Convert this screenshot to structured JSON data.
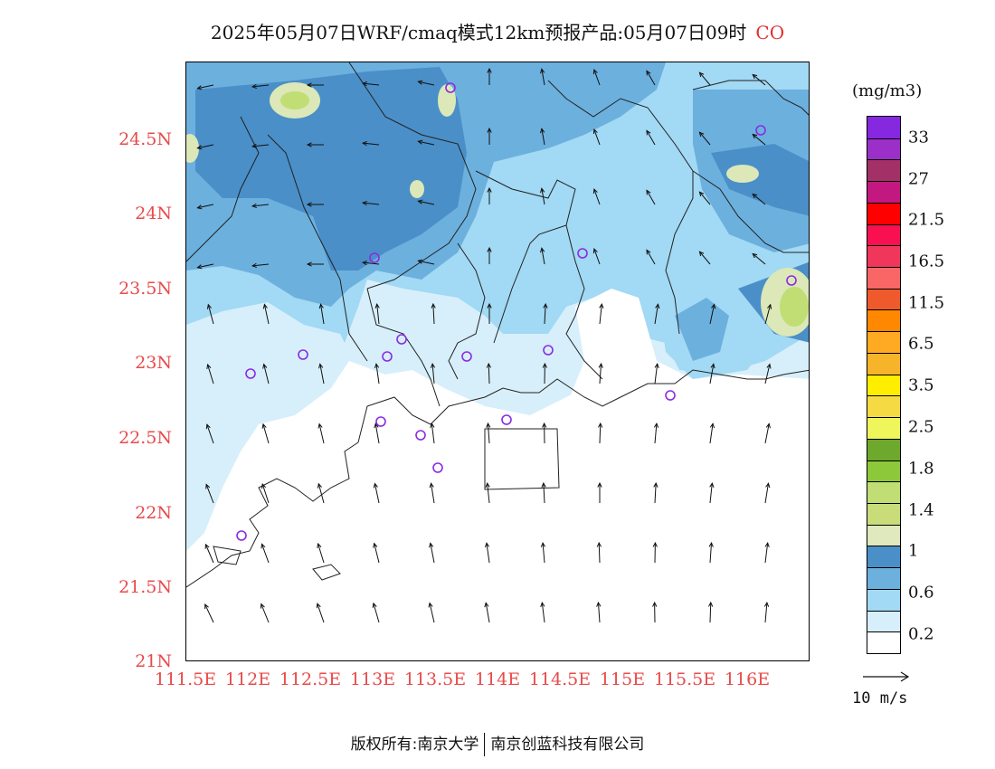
{
  "title": {
    "text": "2025年05月07日WRF/cmaq模式12km预报产品:05月07日09时",
    "species": "CO"
  },
  "map": {
    "lat_labels": [
      "24.5N",
      "24N",
      "23.5N",
      "23N",
      "22.5N",
      "22N",
      "21.5N",
      "21N"
    ],
    "lon_labels": [
      "111.5E",
      "112E",
      "112.5E",
      "113E",
      "113.5E",
      "114E",
      "114.5E",
      "115E",
      "115.5E",
      "116E"
    ],
    "field": "CO concentration",
    "colors": {
      "white": "#ffffff",
      "c02": "#d7effb",
      "c06": "#a2d9f4",
      "c08": "#6cb0de",
      "c10": "#4a8fc8",
      "c12": "#dce8b8",
      "c14": "#c0de74"
    }
  },
  "colorbar": {
    "unit": "(mg/m3)",
    "segments": [
      "#8528e0",
      "#9b2fc8",
      "#a33066",
      "#c31880",
      "#ff0000",
      "#f81050",
      "#f0365a",
      "#f86666",
      "#ef5a2c",
      "#ff8800",
      "#ffaa22",
      "#f6b42a",
      "#ffee00",
      "#f6da44",
      "#eef65c",
      "#6ea82c",
      "#8cc83a",
      "#c0de74",
      "#c8dc7a",
      "#dfe9bd",
      "#4a8fc8",
      "#6cb0de",
      "#a2d9f4",
      "#d7effb",
      "#ffffff"
    ],
    "labels": [
      "33",
      "27",
      "21.5",
      "16.5",
      "11.5",
      "6.5",
      "3.5",
      "2.5",
      "1.8",
      "1.4",
      "1",
      "0.6",
      "0.2"
    ]
  },
  "vector_reference": {
    "label": "10 m/s"
  },
  "footer": {
    "left": "版权所有:南京大学",
    "right": "南京创蓝科技有限公司"
  }
}
